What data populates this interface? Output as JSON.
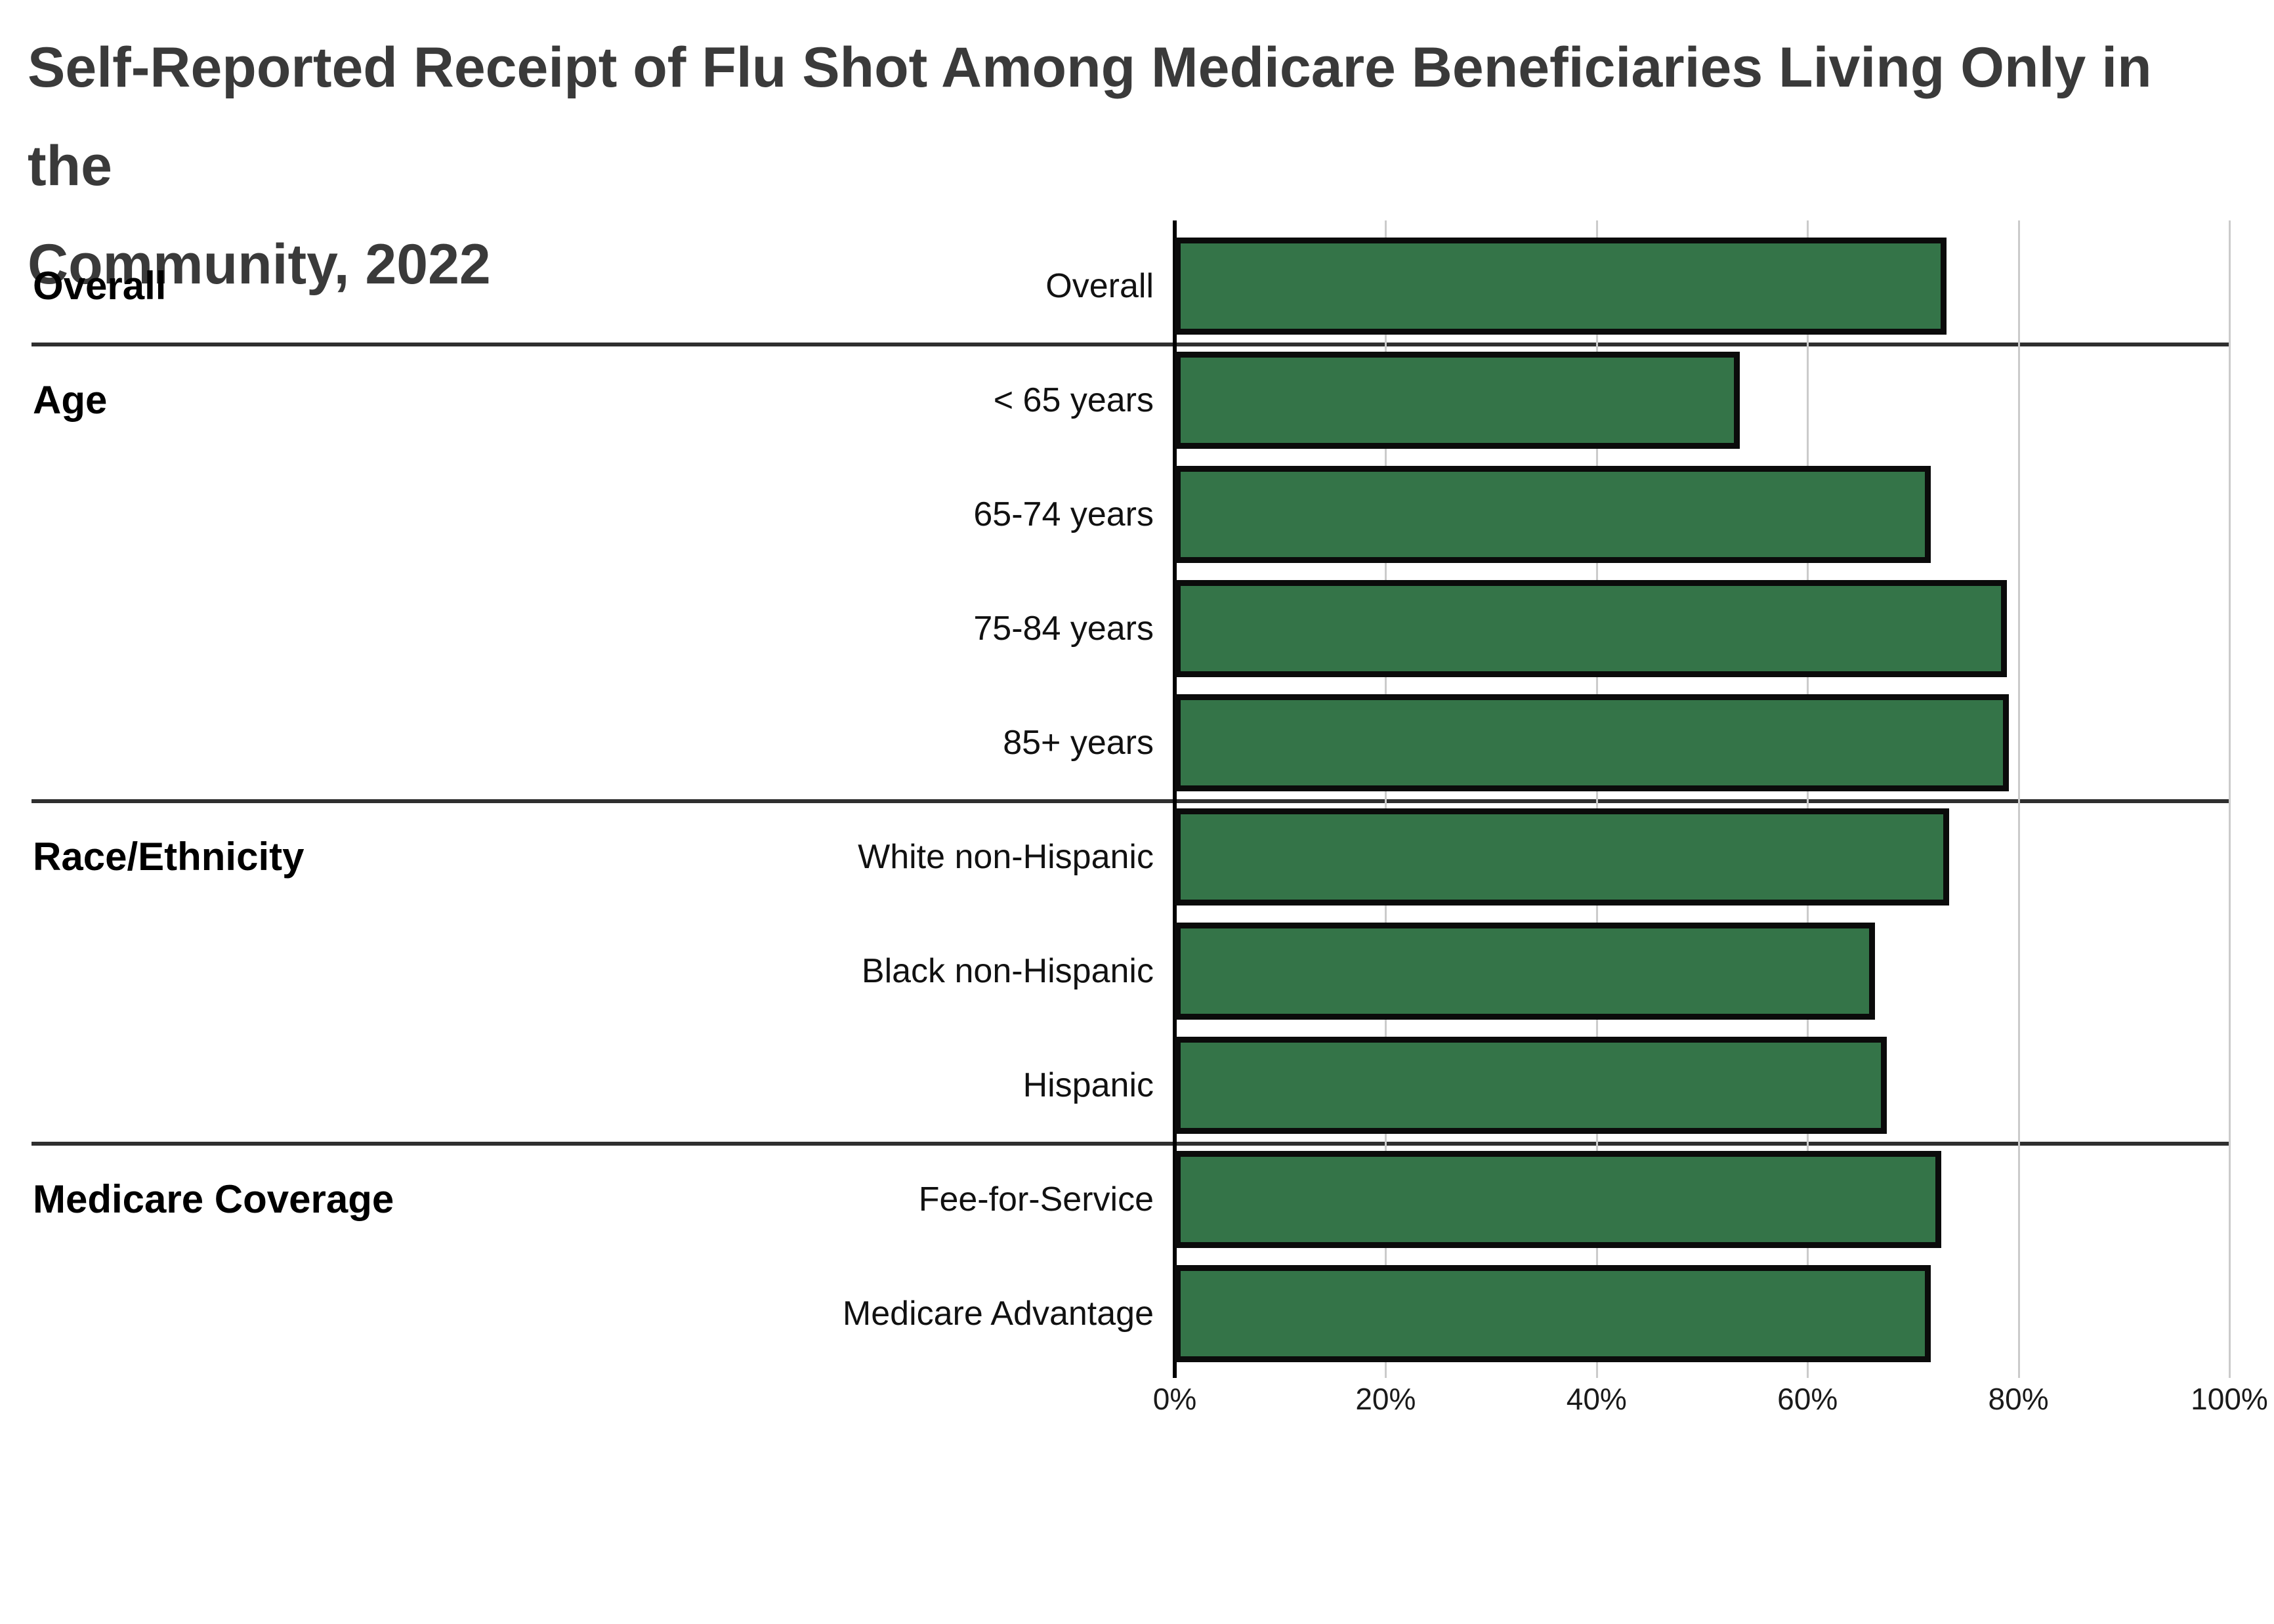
{
  "page": {
    "background": "#ffffff"
  },
  "chart_data": {
    "type": "bar",
    "orientation": "horizontal",
    "title": "Self-Reported Receipt of Flu Shot Among Medicare Beneficiaries Living Only in the Community, 2022",
    "title_lines": [
      "Self-Reported Receipt of Flu Shot Among Medicare Beneficiaries Living Only in the",
      "Community, 2022"
    ],
    "unit": "%",
    "x_axis": {
      "min": 0,
      "max": 100,
      "tick_step": 20,
      "tick_labels": [
        "0%",
        "20%",
        "40%",
        "60%",
        "80%",
        "100%"
      ],
      "grid": true
    },
    "legend": "none",
    "colors": {
      "bar_fill": "#347448",
      "bar_border": "#0b0b0b",
      "gridline": "#cbcbcb",
      "axis": "#000000",
      "separator": "#2f2f2f",
      "title": "#3a3a3a",
      "label": "#111111"
    },
    "groups": [
      {
        "label": "Overall",
        "rows": [
          {
            "label": "Overall",
            "value": 73.2
          }
        ]
      },
      {
        "label": "Age",
        "rows": [
          {
            "label": "< 65 years",
            "value": 53.6
          },
          {
            "label": "65-74 years",
            "value": 71.7
          },
          {
            "label": "75-84 years",
            "value": 78.9
          },
          {
            "label": "85+ years",
            "value": 79.1
          }
        ]
      },
      {
        "label": "Race/Ethnicity",
        "rows": [
          {
            "label": "White non-Hispanic",
            "value": 73.4
          },
          {
            "label": "Black non-Hispanic",
            "value": 66.4
          },
          {
            "label": "Hispanic",
            "value": 67.5
          }
        ]
      },
      {
        "label": "Medicare Coverage",
        "rows": [
          {
            "label": "Fee-for-Service",
            "value": 72.7
          },
          {
            "label": "Medicare Advantage",
            "value": 71.7
          }
        ]
      }
    ]
  }
}
